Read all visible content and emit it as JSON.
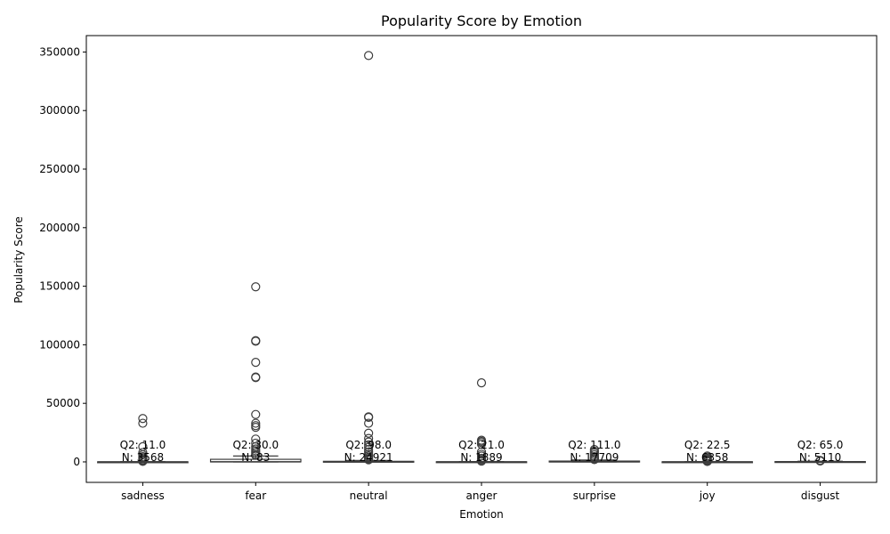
{
  "chart_data": {
    "type": "box",
    "title": "Popularity Score by Emotion",
    "xlabel": "Emotion",
    "ylabel": "Popularity Score",
    "ylim": [
      -17500,
      364000
    ],
    "yticks": [
      0,
      50000,
      100000,
      150000,
      200000,
      250000,
      300000,
      350000
    ],
    "grid": false,
    "categories": [
      "sadness",
      "fear",
      "neutral",
      "anger",
      "surprise",
      "joy",
      "disgust"
    ],
    "boxes": [
      {
        "category": "sadness",
        "q1": 2,
        "median": 11,
        "q3": 60,
        "whislo": 0,
        "whishi": 150,
        "outliers": [
          37000,
          33000,
          13000,
          8000,
          6000,
          4500,
          3500,
          2500,
          1500,
          800,
          400
        ],
        "annotation_q2": "Q2: 11.0",
        "annotation_n": "N: 3568"
      },
      {
        "category": "fear",
        "q1": 10,
        "median": 30,
        "q3": 2200,
        "whislo": 0,
        "whishi": 5000,
        "outliers": [
          149500,
          103500,
          103000,
          85000,
          72500,
          72000,
          40500,
          33000,
          31000,
          29500,
          19500,
          16000,
          13000,
          11000,
          9500,
          8000,
          6500,
          5500
        ],
        "annotation_q2": "Q2: 30.0",
        "annotation_n": "N: 83"
      },
      {
        "category": "neutral",
        "q1": 20,
        "median": 98,
        "q3": 500,
        "whislo": 0,
        "whishi": 1200,
        "outliers": [
          347000,
          38500,
          38000,
          33000,
          24500,
          20000,
          17000,
          14500,
          12500,
          10500,
          8500,
          6500,
          5000,
          3500,
          2500,
          1800
        ],
        "annotation_q2": "Q2: 98.0",
        "annotation_n": "N: 24921"
      },
      {
        "category": "anger",
        "q1": 4,
        "median": 21,
        "q3": 120,
        "whislo": 0,
        "whishi": 300,
        "outliers": [
          67500,
          18500,
          17500,
          16500,
          15000,
          8500,
          6500,
          5000,
          3000,
          2000,
          1000,
          600
        ],
        "annotation_q2": "Q2: 21.0",
        "annotation_n": "N: 1889"
      },
      {
        "category": "surprise",
        "q1": 30,
        "median": 111,
        "q3": 700,
        "whislo": 0,
        "whishi": 1600,
        "outliers": [
          10500,
          9000,
          7500,
          6000,
          4500,
          3500,
          2500,
          2000
        ],
        "annotation_q2": "Q2: 111.0",
        "annotation_n": "N: 17709"
      },
      {
        "category": "joy",
        "q1": 5,
        "median": 22.5,
        "q3": 90,
        "whislo": 0,
        "whishi": 200,
        "outliers": [
          5000,
          4000,
          3000,
          2200,
          1500,
          900,
          500,
          300
        ],
        "annotation_q2": "Q2: 22.5",
        "annotation_n": "N: 6358"
      },
      {
        "category": "disgust",
        "q1": 15,
        "median": 65,
        "q3": 250,
        "whislo": 0,
        "whishi": 600,
        "outliers": [
          1200,
          900,
          700
        ],
        "annotation_q2": "Q2: 65.0",
        "annotation_n": "N: 5110"
      }
    ]
  }
}
